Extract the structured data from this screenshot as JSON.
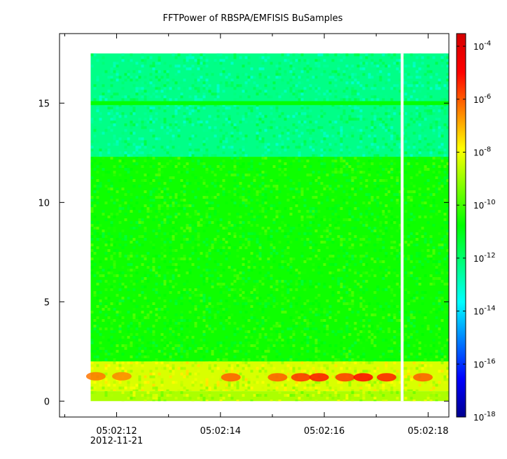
{
  "chart_data": {
    "type": "heatmap",
    "title": "FFTPower of RBSPA/EMFISIS  BuSamples",
    "xlabel": "",
    "ylabel": "",
    "x_range": [
      "05:02:10.9",
      "05:02:18.4"
    ],
    "x_ticks": [
      {
        "label": "05:02:12",
        "sublabel": "2012-11-21",
        "t": 12
      },
      {
        "label": "05:02:14",
        "sublabel": "",
        "t": 14
      },
      {
        "label": "05:02:16",
        "sublabel": "",
        "t": 16
      },
      {
        "label": "05:02:18",
        "sublabel": "",
        "t": 18
      }
    ],
    "x_minor_ticks": [
      11,
      13,
      15,
      17
    ],
    "y_range": [
      -0.8,
      18.5
    ],
    "y_ticks": [
      0,
      5,
      10,
      15
    ],
    "data_extent": {
      "t_start": 11.5,
      "t_end": 18.4,
      "y_min": 0,
      "y_max": 17.5
    },
    "gap": {
      "t": 17.5
    },
    "colorbar": {
      "scale": "log",
      "range": [
        1e-18,
        0.0003
      ],
      "ticks": [
        {
          "base": "10",
          "exp": "-4",
          "value": 0.0001
        },
        {
          "base": "10",
          "exp": "-6",
          "value": 1e-06
        },
        {
          "base": "10",
          "exp": "-8",
          "value": 1e-08
        },
        {
          "base": "10",
          "exp": "-10",
          "value": 1e-10
        },
        {
          "base": "10",
          "exp": "-12",
          "value": 1e-12
        },
        {
          "base": "10",
          "exp": "-14",
          "value": 1e-14
        },
        {
          "base": "10",
          "exp": "-16",
          "value": 1e-16
        },
        {
          "base": "10",
          "exp": "-18",
          "value": 1e-18
        }
      ],
      "colors": [
        "#00008f",
        "#0000ff",
        "#007fff",
        "#00ffff",
        "#00ff7f",
        "#00ff00",
        "#7fff00",
        "#ffff00",
        "#ff7f00",
        "#ff0000",
        "#d40000"
      ]
    },
    "bands": [
      {
        "name": "upper",
        "y_from": 12.3,
        "y_to": 17.5,
        "log_power": -12.3
      },
      {
        "name": "line-15",
        "y_from": 14.9,
        "y_to": 15.1,
        "log_power": -10.7
      },
      {
        "name": "middle",
        "y_from": 2.0,
        "y_to": 12.3,
        "log_power": -10.6
      },
      {
        "name": "low",
        "y_from": 0.5,
        "y_to": 2.0,
        "log_power": -8.3
      },
      {
        "name": "bottom",
        "y_from": 0,
        "y_to": 0.5,
        "log_power": -8.8
      }
    ],
    "bursts": [
      {
        "t": 11.6,
        "y": 1.25,
        "log_power": -6.3
      },
      {
        "t": 12.1,
        "y": 1.25,
        "log_power": -6.5
      },
      {
        "t": 14.2,
        "y": 1.2,
        "log_power": -6.0
      },
      {
        "t": 15.1,
        "y": 1.2,
        "log_power": -6.0
      },
      {
        "t": 15.55,
        "y": 1.2,
        "log_power": -5.5
      },
      {
        "t": 15.9,
        "y": 1.2,
        "log_power": -5.2
      },
      {
        "t": 16.4,
        "y": 1.2,
        "log_power": -5.6
      },
      {
        "t": 16.75,
        "y": 1.2,
        "log_power": -5.0
      },
      {
        "t": 17.2,
        "y": 1.2,
        "log_power": -5.3
      },
      {
        "t": 17.9,
        "y": 1.2,
        "log_power": -6.0
      }
    ]
  }
}
